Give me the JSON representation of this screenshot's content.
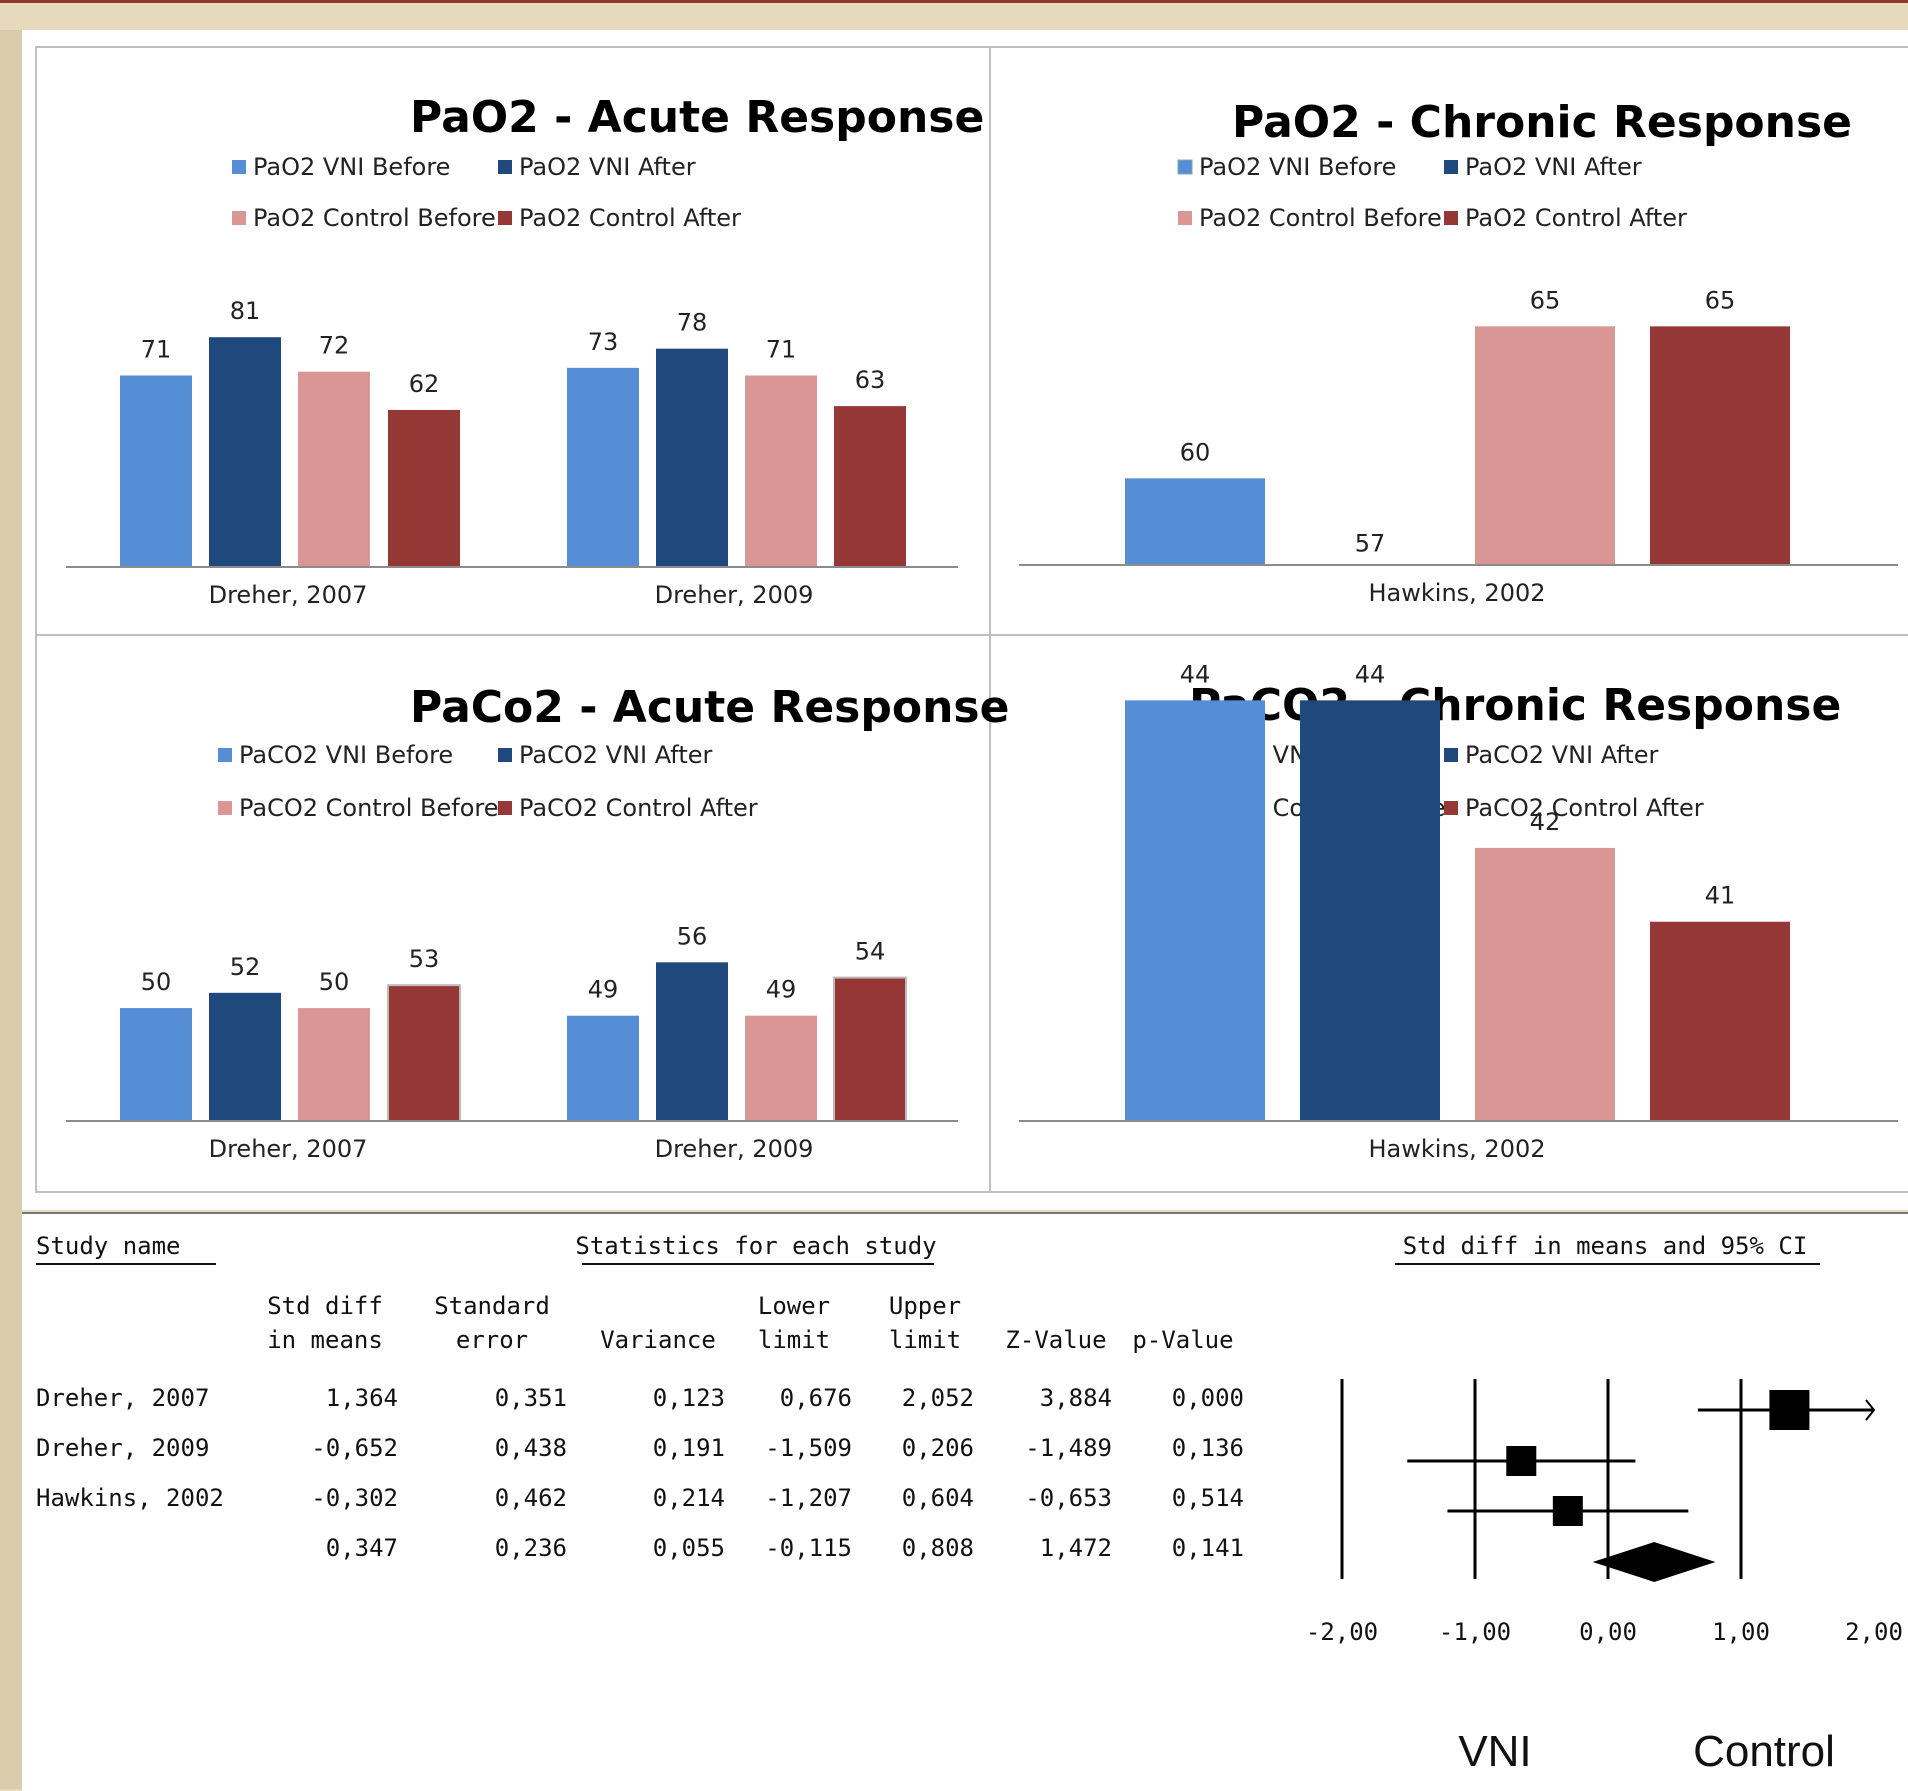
{
  "colors": {
    "vni_before": "#558ed5",
    "vni_after": "#1f497d",
    "control_before": "#d99694",
    "control_after": "#953735"
  },
  "chart_data": [
    {
      "type": "bar",
      "title": "PaO2 - Acute Response",
      "categories": [
        "Dreher, 2007",
        "Dreher, 2009"
      ],
      "series": [
        {
          "name": "PaO2 VNI Before",
          "values": [
            71,
            73
          ]
        },
        {
          "name": "PaO2 VNI After",
          "values": [
            81,
            78
          ]
        },
        {
          "name": "PaO2 Control Before",
          "values": [
            72,
            71
          ]
        },
        {
          "name": "PaO2 Control After",
          "values": [
            62,
            63
          ]
        }
      ],
      "legend": "top"
    },
    {
      "type": "bar",
      "title": "PaO2 - Chronic Response",
      "categories": [
        "Hawkins, 2002"
      ],
      "series": [
        {
          "name": "PaO2 VNI Before",
          "values": [
            60
          ]
        },
        {
          "name": "PaO2 VNI After",
          "values": [
            57
          ]
        },
        {
          "name": "PaO2 Control Before",
          "values": [
            65
          ]
        },
        {
          "name": "PaO2 Control After",
          "values": [
            65
          ]
        }
      ],
      "legend": "top"
    },
    {
      "type": "bar",
      "title": "PaCo2 - Acute Response",
      "categories": [
        "Dreher, 2007",
        "Dreher, 2009"
      ],
      "series": [
        {
          "name": "PaCO2 VNI Before",
          "values": [
            50,
            49
          ]
        },
        {
          "name": "PaCO2 VNI After",
          "values": [
            52,
            56
          ]
        },
        {
          "name": "PaCO2 Control Before",
          "values": [
            50,
            49
          ]
        },
        {
          "name": "PaCO2 Control After",
          "values": [
            53,
            54
          ]
        }
      ],
      "legend": "top"
    },
    {
      "type": "bar",
      "title": "PaCO2 - Chronic Response",
      "categories": [
        "Hawkins, 2002"
      ],
      "series": [
        {
          "name": "PaCO2 VNI Before",
          "values": [
            44
          ]
        },
        {
          "name": "PaCO2 VNI After",
          "values": [
            44
          ]
        },
        {
          "name": "PaCO2 Control Before",
          "values": [
            42
          ]
        },
        {
          "name": "PaCO2 Control After",
          "values": [
            41
          ]
        }
      ],
      "legend": "top"
    },
    {
      "type": "table",
      "headers": {
        "study_name": "Study name",
        "stats_group": "Statistics for each study",
        "ci_group": "Std diff in means and 95% CI",
        "columns": [
          [
            "Std diff",
            "in means"
          ],
          [
            "Standard",
            "error"
          ],
          [
            "",
            "Variance"
          ],
          [
            "Lower",
            "limit"
          ],
          [
            "Upper",
            "limit"
          ],
          [
            "",
            "Z-Value"
          ],
          [
            "",
            "p-Value"
          ]
        ]
      },
      "rows": [
        {
          "study": "Dreher, 2007",
          "values": [
            "1,364",
            "0,351",
            "0,123",
            "0,676",
            "2,052",
            "3,884",
            "0,000"
          ],
          "estimate": 1.364,
          "lower": 0.676,
          "upper": 2.052
        },
        {
          "study": "Dreher, 2009",
          "values": [
            "-0,652",
            "0,438",
            "0,191",
            "-1,509",
            "0,206",
            "-1,489",
            "0,136"
          ],
          "estimate": -0.652,
          "lower": -1.509,
          "upper": 0.206
        },
        {
          "study": "Hawkins, 2002",
          "values": [
            "-0,302",
            "0,462",
            "0,214",
            "-1,207",
            "0,604",
            "-0,653",
            "0,514"
          ],
          "estimate": -0.302,
          "lower": -1.207,
          "upper": 0.604
        },
        {
          "study": "",
          "values": [
            "0,347",
            "0,236",
            "0,055",
            "-0,115",
            "0,808",
            "1,472",
            "0,141"
          ],
          "estimate": 0.347,
          "lower": -0.115,
          "upper": 0.808,
          "summary": true
        }
      ],
      "xticks": [
        "-2,00",
        "-1,00",
        "0,00",
        "1,00",
        "2,00"
      ],
      "xlim": [
        -2,
        2
      ],
      "side_labels": [
        "VNI",
        "Control"
      ]
    }
  ]
}
